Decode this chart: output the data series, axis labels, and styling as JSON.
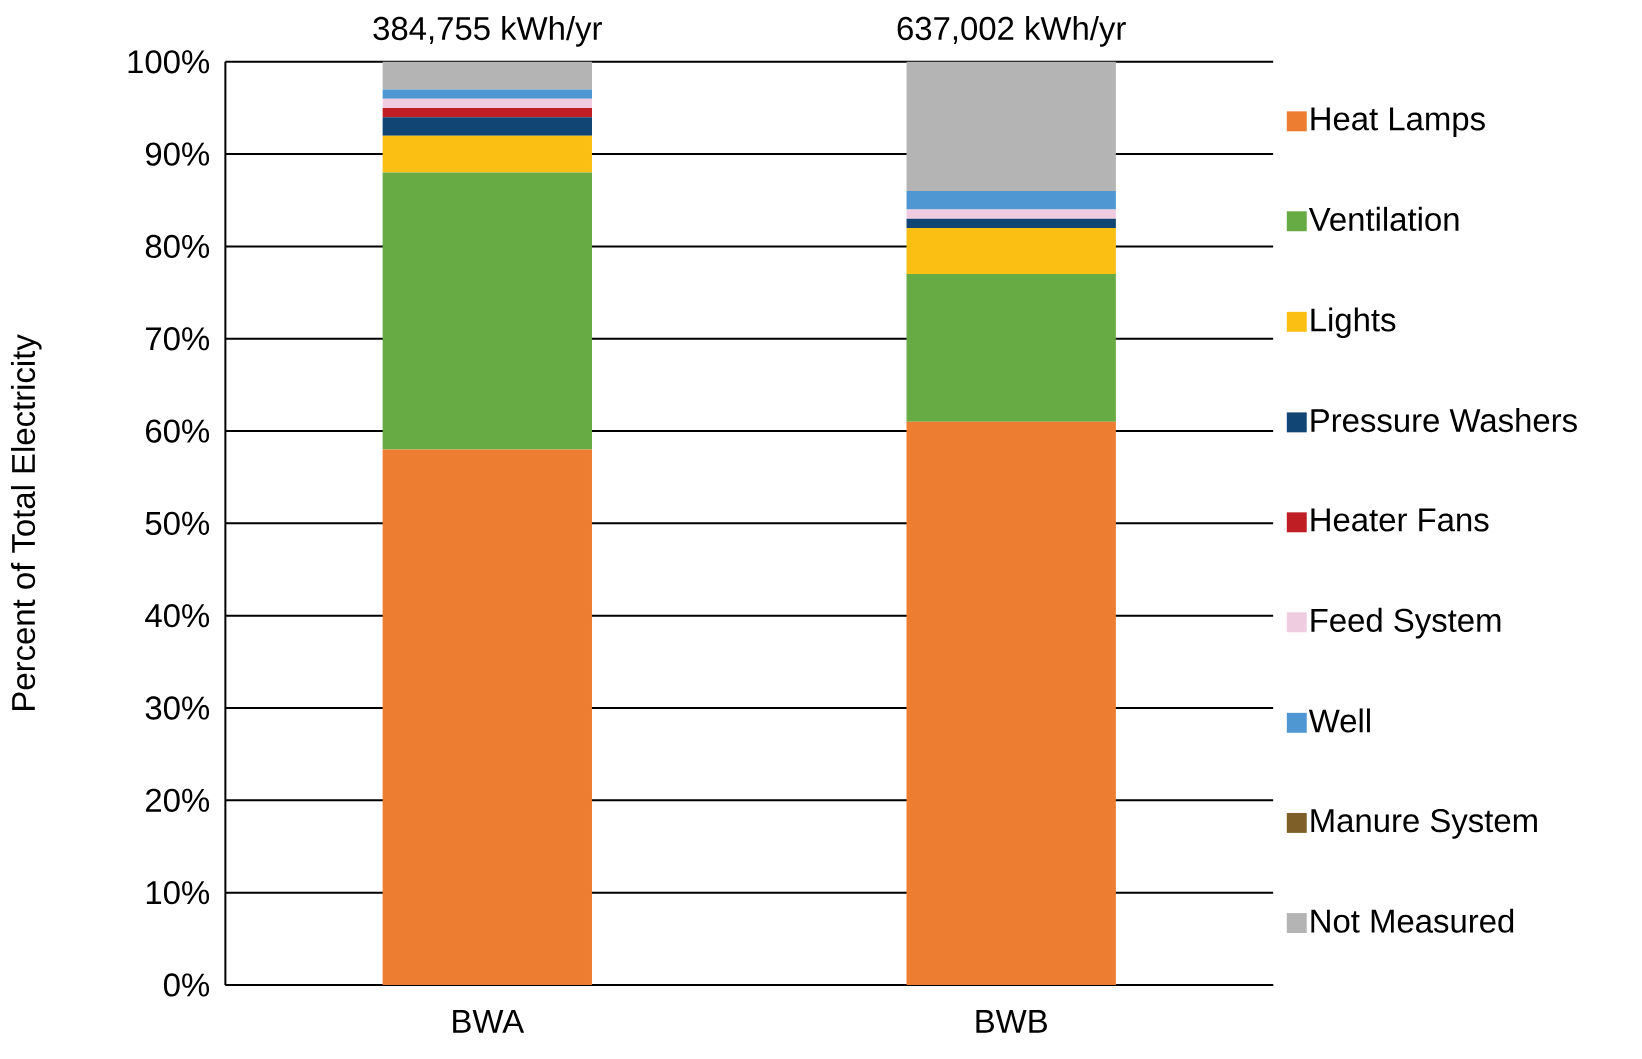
{
  "chart_data": {
    "type": "bar",
    "stacked": true,
    "ylabel": "Percent of Total Electricity",
    "categories": [
      "BWA",
      "BWB"
    ],
    "series": [
      {
        "name": "Heat Lamps",
        "color": "#ed7d31",
        "values": [
          58,
          61
        ]
      },
      {
        "name": "Ventilation",
        "color": "#67ab45",
        "values": [
          30,
          16
        ]
      },
      {
        "name": "Lights",
        "color": "#fbbf14",
        "values": [
          4,
          5
        ]
      },
      {
        "name": "Pressure Washers",
        "color": "#114574",
        "values": [
          2,
          1
        ]
      },
      {
        "name": "Heater Fans",
        "color": "#be1e24",
        "values": [
          1,
          0
        ]
      },
      {
        "name": "Feed System",
        "color": "#f0cce0",
        "values": [
          1,
          1
        ]
      },
      {
        "name": "Well",
        "color": "#4f97d3",
        "values": [
          1,
          2
        ]
      },
      {
        "name": "Manure System",
        "color": "#7f5f28",
        "values": [
          0,
          0
        ]
      },
      {
        "name": "Not Measured",
        "color": "#b4b4b4",
        "values": [
          3,
          14
        ]
      }
    ],
    "ylim": [
      0,
      100
    ],
    "yticks": [
      {
        "value": 0,
        "label": "0%"
      },
      {
        "value": 10,
        "label": "10%"
      },
      {
        "value": 20,
        "label": "20%"
      },
      {
        "value": 30,
        "label": "30%"
      },
      {
        "value": 40,
        "label": "40%"
      },
      {
        "value": 50,
        "label": "50%"
      },
      {
        "value": 60,
        "label": "60%"
      },
      {
        "value": 70,
        "label": "70%"
      },
      {
        "value": 80,
        "label": "80%"
      },
      {
        "value": 90,
        "label": "90%"
      },
      {
        "value": 100,
        "label": "100%"
      }
    ],
    "grid": "y",
    "legend": "right",
    "annotations": [
      {
        "text": "384,755 kWh/yr",
        "x": "BWA",
        "y": 100
      },
      {
        "text": "637,002 kWh/yr",
        "x": "BWB",
        "y": 100
      }
    ]
  }
}
